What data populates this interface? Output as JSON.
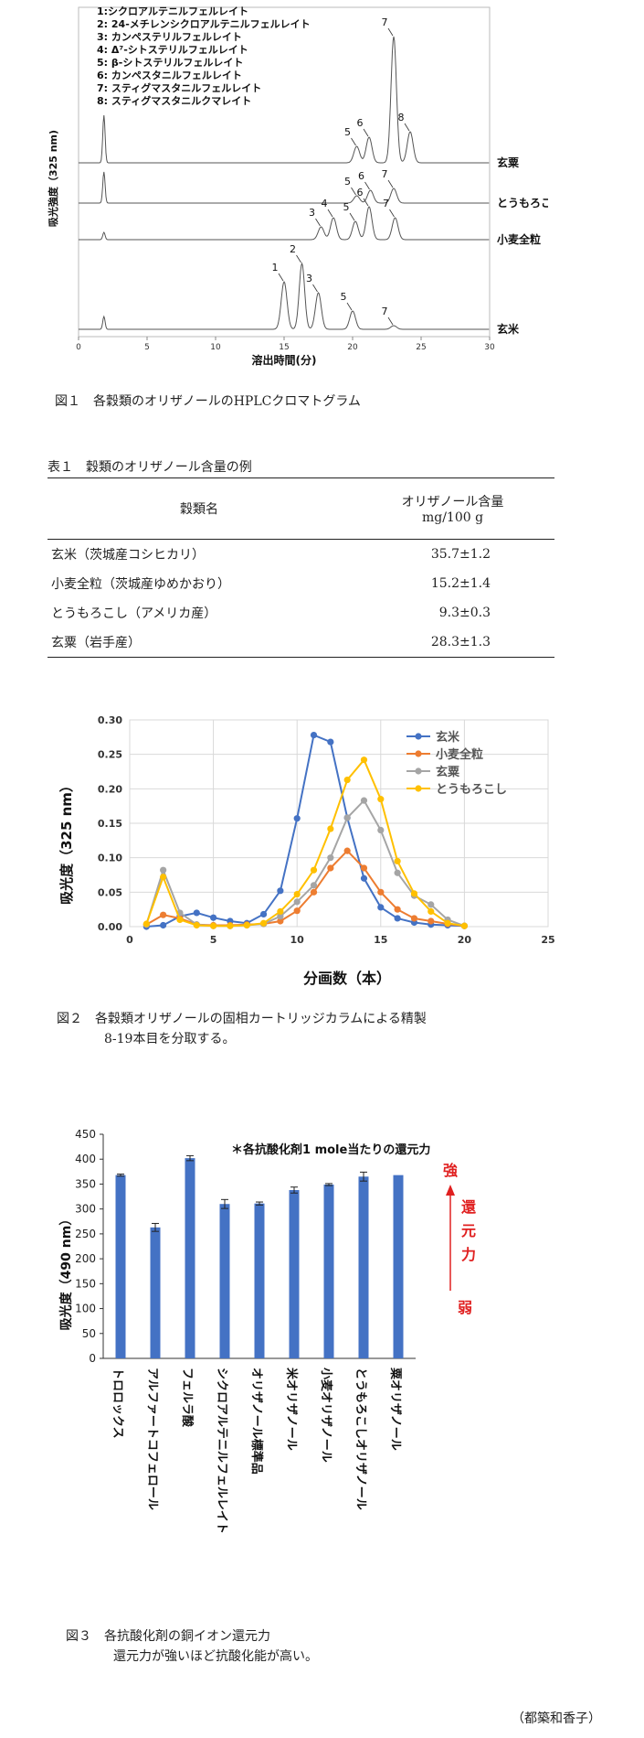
{
  "fig1": {
    "caption": "図１　各穀類のオリザノールのHPLCクロマトグラム",
    "ylabel": "吸光強度（325 nm)",
    "xlabel": "溶出時間(分)",
    "xticks": [
      "0",
      "5",
      "10",
      "15",
      "20",
      "25",
      "30"
    ],
    "legend": [
      "1:シクロアルテニルフェルレイト",
      "2: 24-メチレンシクロアルテニルフェルレイト",
      "3: カンペステリルフェルレイト",
      "4: Δ⁷-シトステリルフェルレイト",
      "5: β-シトステリルフェルレイト",
      "6: カンペスタニルフェルレイト",
      "7: スティグマスタニルフェルレイト",
      "8: スティグマスタニルクマレイト"
    ],
    "traces": [
      {
        "name": "玄粟",
        "peaks": [
          {
            "label": "5",
            "t": 20.3,
            "h": 18
          },
          {
            "label": "6",
            "t": 21.2,
            "h": 28
          },
          {
            "label": "7",
            "t": 23.0,
            "h": 138
          },
          {
            "label": "8",
            "t": 24.2,
            "h": 34
          }
        ]
      },
      {
        "name": "とうもろこし",
        "peaks": [
          {
            "label": "5",
            "t": 20.3,
            "h": 8
          },
          {
            "label": "6",
            "t": 21.3,
            "h": 14
          },
          {
            "label": "7",
            "t": 23.0,
            "h": 16
          }
        ]
      },
      {
        "name": "小麦全粒",
        "peaks": [
          {
            "label": "3",
            "t": 17.7,
            "h": 14
          },
          {
            "label": "4",
            "t": 18.6,
            "h": 24
          },
          {
            "label": "5",
            "t": 20.2,
            "h": 20
          },
          {
            "label": "6",
            "t": 21.2,
            "h": 36
          },
          {
            "label": "7",
            "t": 23.1,
            "h": 24
          }
        ]
      },
      {
        "name": "玄米",
        "peaks": [
          {
            "label": "1",
            "t": 15.0,
            "h": 52
          },
          {
            "label": "2",
            "t": 16.3,
            "h": 72
          },
          {
            "label": "3",
            "t": 17.5,
            "h": 40
          },
          {
            "label": "5",
            "t": 20.0,
            "h": 20
          },
          {
            "label": "7",
            "t": 23.0,
            "h": 4
          }
        ]
      }
    ]
  },
  "table1": {
    "caption": "表１　穀類のオリザノール含量の例",
    "header_name": "穀類名",
    "header_value_line1": "オリザノール含量",
    "header_value_line2": "mg/100 g",
    "rows": [
      {
        "name": "玄米（茨城産コシヒカリ）",
        "value": "35.7±1.2"
      },
      {
        "name": "小麦全粒（茨城産ゆめかおり）",
        "value": "15.2±1.4"
      },
      {
        "name": "とうもろこし（アメリカ産）",
        "value": "9.3±0.3"
      },
      {
        "name": "玄粟（岩手産）",
        "value": "28.3±1.3"
      }
    ]
  },
  "fig2": {
    "caption_line1": "図２　各穀類オリザノールの固相カートリッジカラムによる精製",
    "caption_line2": "8-19本目を分取する。",
    "chart_data": {
      "type": "line",
      "xlabel": "分画数（本）",
      "ylabel": "吸光度（325 nm）",
      "xlim": [
        0,
        25
      ],
      "ylim": [
        0,
        0.3
      ],
      "xticks": [
        "0",
        "5",
        "10",
        "15",
        "20",
        "25"
      ],
      "yticks": [
        "0.00",
        "0.05",
        "0.10",
        "0.15",
        "0.20",
        "0.25",
        "0.30"
      ],
      "legend_position": "top-right",
      "x": [
        1,
        2,
        3,
        4,
        5,
        6,
        7,
        8,
        9,
        10,
        11,
        12,
        13,
        14,
        15,
        16,
        17,
        18,
        19,
        20
      ],
      "series": [
        {
          "name": "玄米",
          "color": "#4472C4",
          "values": [
            0.0,
            0.002,
            0.015,
            0.02,
            0.013,
            0.008,
            0.005,
            0.018,
            0.052,
            0.157,
            0.278,
            0.268,
            0.158,
            0.07,
            0.028,
            0.012,
            0.006,
            0.003,
            0.002,
            0.001
          ]
        },
        {
          "name": "小麦全粒",
          "color": "#ED7D31",
          "values": [
            0.003,
            0.017,
            0.012,
            0.003,
            0.002,
            0.002,
            0.003,
            0.004,
            0.008,
            0.023,
            0.05,
            0.085,
            0.11,
            0.085,
            0.05,
            0.025,
            0.012,
            0.008,
            0.004,
            0.001
          ]
        },
        {
          "name": "玄粟",
          "color": "#A5A5A5",
          "values": [
            0.003,
            0.082,
            0.02,
            0.003,
            0.001,
            0.001,
            0.002,
            0.004,
            0.015,
            0.036,
            0.06,
            0.1,
            0.158,
            0.183,
            0.14,
            0.078,
            0.045,
            0.032,
            0.01,
            0.001
          ]
        },
        {
          "name": "とうもろこし",
          "color": "#FFC000",
          "values": [
            0.004,
            0.072,
            0.01,
            0.002,
            0.001,
            0.001,
            0.002,
            0.005,
            0.022,
            0.047,
            0.082,
            0.142,
            0.213,
            0.242,
            0.185,
            0.095,
            0.048,
            0.022,
            0.005,
            0.001
          ]
        }
      ]
    }
  },
  "fig3": {
    "caption_line1": "図３　各抗酸化剤の銅イオン還元力",
    "caption_line2": "還元力が強いほど抗酸化能が高い。",
    "note": "＊各抗酸化剤1 mole当たりの還元力",
    "strong_label": "強",
    "weak_label": "弱",
    "arrow_text": [
      "還",
      "元",
      "力"
    ],
    "accent_color": "#E02020",
    "chart_data": {
      "type": "bar",
      "ylabel": "吸光度（490 nm）",
      "ylim": [
        0,
        450
      ],
      "yticks": [
        "0",
        "50",
        "100",
        "150",
        "200",
        "250",
        "300",
        "350",
        "400",
        "450"
      ],
      "categories": [
        "トロロックス",
        "アルファートコフェロール",
        "フェルラ酸",
        "シクロアルテニルフェルレイト",
        "オリザノール標準品",
        "米オリザノール",
        "小麦オリザノール",
        "とうもろこしオリザノール",
        "粟オリザノール"
      ],
      "values": [
        368,
        263,
        402,
        310,
        311,
        338,
        349,
        365,
        368
      ],
      "errors": [
        2,
        8,
        5,
        9,
        3,
        6,
        2,
        9,
        0
      ],
      "color": "#4472C4"
    }
  },
  "author": "（都築和香子）"
}
